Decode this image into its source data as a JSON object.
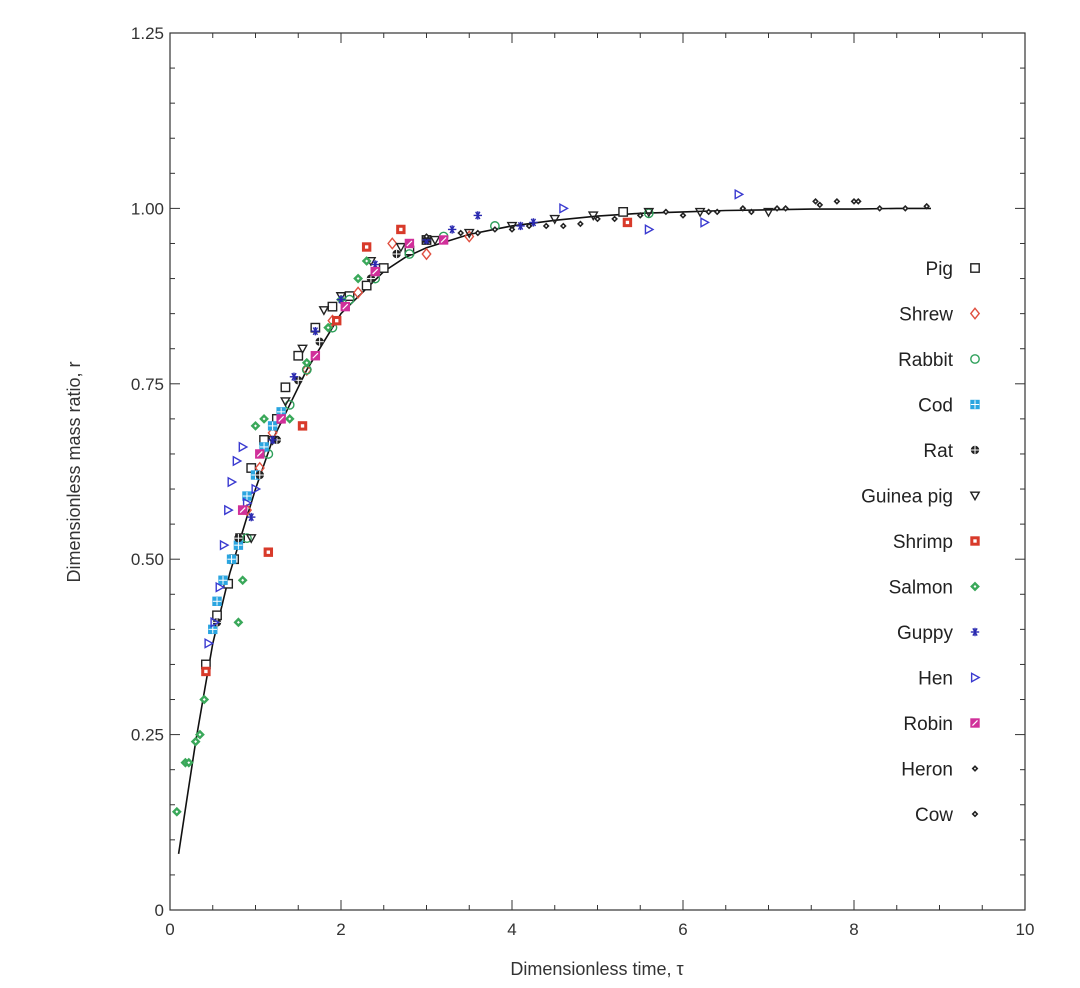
{
  "chart_data": {
    "type": "scatter",
    "title": "",
    "xlabel": "Dimensionless time, τ",
    "ylabel": "Dimensionless mass ratio, r",
    "xlim": [
      0,
      10
    ],
    "ylim": [
      0,
      1.25
    ],
    "xticks": [
      0,
      2,
      4,
      6,
      8,
      10
    ],
    "yticks": [
      0,
      0.25,
      0.5,
      0.75,
      1.0,
      1.25
    ],
    "xtick_labels": [
      "0",
      "2",
      "4",
      "6",
      "8",
      "10"
    ],
    "ytick_labels": [
      "0",
      "0.25",
      "0.50",
      "0.75",
      "1.00",
      "1.25"
    ],
    "grid": false,
    "legend_position": "right",
    "fit_line": {
      "x": [
        0.1,
        0.2,
        0.3,
        0.4,
        0.5,
        0.6,
        0.7,
        0.8,
        0.9,
        1.0,
        1.2,
        1.4,
        1.6,
        1.8,
        2.0,
        2.25,
        2.5,
        2.75,
        3.0,
        3.5,
        4.0,
        4.5,
        5.0,
        5.5,
        6.0,
        6.5,
        7.0,
        7.5,
        8.0,
        8.5,
        8.9
      ],
      "y": [
        0.08,
        0.16,
        0.24,
        0.31,
        0.38,
        0.43,
        0.48,
        0.52,
        0.56,
        0.6,
        0.67,
        0.72,
        0.77,
        0.81,
        0.85,
        0.88,
        0.91,
        0.93,
        0.944,
        0.963,
        0.975,
        0.983,
        0.989,
        0.993,
        0.995,
        0.997,
        0.998,
        0.999,
        0.999,
        1.0,
        1.0
      ]
    },
    "series": [
      {
        "name": "Pig",
        "marker": "square-open",
        "color": "#222222",
        "x": [
          0.42,
          0.55,
          0.68,
          0.75,
          0.82,
          0.95,
          1.1,
          1.25,
          1.35,
          1.5,
          1.7,
          1.9,
          2.1,
          2.3,
          2.5,
          2.8,
          3.0,
          5.3
        ],
        "y": [
          0.35,
          0.42,
          0.465,
          0.5,
          0.53,
          0.63,
          0.67,
          0.7,
          0.745,
          0.79,
          0.83,
          0.86,
          0.875,
          0.89,
          0.915,
          0.94,
          0.955,
          0.995
        ]
      },
      {
        "name": "Shrew",
        "marker": "diamond-open",
        "color": "#e05040",
        "x": [
          0.9,
          1.05,
          1.2,
          1.6,
          1.9,
          2.2,
          2.6,
          3.0,
          3.5
        ],
        "y": [
          0.57,
          0.63,
          0.68,
          0.77,
          0.84,
          0.88,
          0.95,
          0.935,
          0.96
        ]
      },
      {
        "name": "Rabbit",
        "marker": "circle-open",
        "color": "#2ea05a",
        "x": [
          0.9,
          1.15,
          1.4,
          1.6,
          1.9,
          2.1,
          2.4,
          2.8,
          3.2,
          3.8,
          5.6
        ],
        "y": [
          0.53,
          0.65,
          0.72,
          0.77,
          0.83,
          0.87,
          0.9,
          0.935,
          0.96,
          0.975,
          0.993
        ]
      },
      {
        "name": "Cod",
        "marker": "square-grid",
        "color": "#2aa5e0",
        "x": [
          0.5,
          0.55,
          0.62,
          0.72,
          0.8,
          0.9,
          1.0,
          1.1,
          1.2,
          1.3
        ],
        "y": [
          0.4,
          0.44,
          0.47,
          0.5,
          0.52,
          0.59,
          0.62,
          0.66,
          0.69,
          0.71
        ]
      },
      {
        "name": "Rat",
        "marker": "circle-filled",
        "color": "#222222",
        "x": [
          0.55,
          0.8,
          1.05,
          1.25,
          1.5,
          1.75,
          2.05,
          2.35,
          2.65,
          3.0
        ],
        "y": [
          0.41,
          0.53,
          0.62,
          0.67,
          0.755,
          0.81,
          0.86,
          0.9,
          0.935,
          0.955
        ]
      },
      {
        "name": "Guinea pig",
        "marker": "triangle-down-open",
        "color": "#222222",
        "x": [
          0.95,
          1.2,
          1.35,
          1.55,
          1.8,
          2.0,
          2.35,
          2.7,
          3.1,
          3.5,
          4.0,
          4.5,
          4.95,
          5.6,
          6.2,
          7.0
        ],
        "y": [
          0.53,
          0.67,
          0.725,
          0.8,
          0.855,
          0.875,
          0.925,
          0.945,
          0.955,
          0.965,
          0.975,
          0.985,
          0.99,
          0.995,
          0.995,
          0.995
        ]
      },
      {
        "name": "Shrimp",
        "marker": "square-half",
        "color": "#d83a2a",
        "x": [
          0.42,
          0.85,
          1.15,
          1.55,
          1.95,
          2.3,
          2.7,
          5.35
        ],
        "y": [
          0.34,
          0.57,
          0.51,
          0.69,
          0.84,
          0.945,
          0.97,
          0.98
        ]
      },
      {
        "name": "Salmon",
        "marker": "diamond-filled",
        "color": "#3aa85a",
        "x": [
          0.08,
          0.18,
          0.22,
          0.3,
          0.35,
          0.4,
          0.8,
          0.85,
          1.0,
          1.1,
          1.4,
          1.6,
          1.85,
          2.0,
          2.2,
          2.3
        ],
        "y": [
          0.14,
          0.21,
          0.21,
          0.24,
          0.25,
          0.3,
          0.41,
          0.47,
          0.69,
          0.7,
          0.7,
          0.78,
          0.83,
          0.87,
          0.9,
          0.925
        ]
      },
      {
        "name": "Guppy",
        "marker": "asterisk",
        "color": "#2a2ab0",
        "x": [
          0.95,
          1.2,
          1.45,
          1.7,
          2.0,
          2.4,
          3.0,
          3.3,
          3.6,
          4.1,
          4.25
        ],
        "y": [
          0.56,
          0.67,
          0.76,
          0.825,
          0.87,
          0.92,
          0.955,
          0.97,
          0.99,
          0.975,
          0.98
        ]
      },
      {
        "name": "Hen",
        "marker": "triangle-right-open",
        "color": "#3a3ad0",
        "x": [
          0.45,
          0.52,
          0.58,
          0.63,
          0.68,
          0.72,
          0.78,
          0.85,
          0.9,
          1.0,
          4.6,
          5.6,
          6.25,
          6.65
        ],
        "y": [
          0.38,
          0.41,
          0.46,
          0.52,
          0.57,
          0.61,
          0.64,
          0.66,
          0.58,
          0.6,
          1.0,
          0.97,
          0.98,
          1.02
        ]
      },
      {
        "name": "Robin",
        "marker": "square-pink",
        "color": "#d0309a",
        "x": [
          0.85,
          1.05,
          1.3,
          1.7,
          2.05,
          2.4,
          2.8,
          3.2
        ],
        "y": [
          0.57,
          0.65,
          0.7,
          0.79,
          0.86,
          0.91,
          0.95,
          0.955
        ]
      },
      {
        "name": "Heron",
        "marker": "small-diamond",
        "color": "#222222",
        "x": [
          3.0,
          3.6,
          4.0,
          4.4,
          4.8,
          5.2,
          6.0,
          6.4,
          6.8,
          7.2,
          7.6,
          8.0,
          8.3
        ],
        "y": [
          0.96,
          0.965,
          0.97,
          0.975,
          0.978,
          0.985,
          0.99,
          0.995,
          0.995,
          1.0,
          1.005,
          1.01,
          1.0
        ]
      },
      {
        "name": "Cow",
        "marker": "small-diamond",
        "color": "#222222",
        "x": [
          3.4,
          3.8,
          4.2,
          4.6,
          5.0,
          5.5,
          5.8,
          6.3,
          6.7,
          7.1,
          7.55,
          7.8,
          8.05,
          8.6,
          8.85
        ],
        "y": [
          0.965,
          0.97,
          0.975,
          0.975,
          0.985,
          0.99,
          0.995,
          0.995,
          1.0,
          1.0,
          1.01,
          1.01,
          1.01,
          1.0,
          1.003
        ]
      }
    ]
  }
}
